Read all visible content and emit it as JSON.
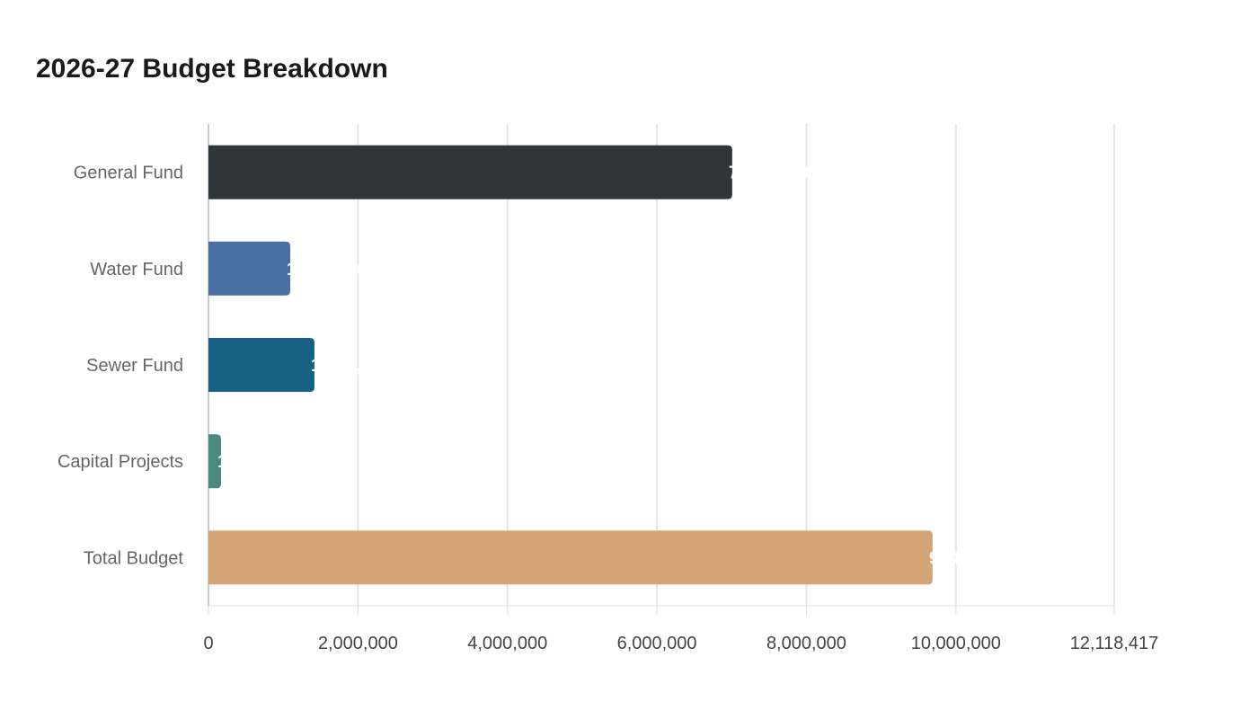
{
  "chart_data": {
    "type": "bar",
    "orientation": "horizontal",
    "title": "2026-27 Budget Breakdown",
    "categories": [
      "General Fund",
      "Water Fund",
      "Sewer Fund",
      "Capital Projects",
      "Total Budget"
    ],
    "values": [
      7007000,
      1094000,
      1418000,
      168000,
      9688000
    ],
    "colors": [
      "#2e3638",
      "#4a6fa5",
      "#166084",
      "#4a8a7a",
      "#d3a475"
    ],
    "xlim": [
      0,
      12118417
    ],
    "xticks": [
      0,
      2000000,
      4000000,
      6000000,
      8000000,
      10000000,
      12118417
    ],
    "xtick_labels": [
      "0",
      "2,000,000",
      "4,000,000",
      "6,000,000",
      "8,000,000",
      "10,000,000",
      "12,118,417"
    ],
    "grid": true,
    "data_labels": true,
    "xlabel": "",
    "ylabel": ""
  }
}
